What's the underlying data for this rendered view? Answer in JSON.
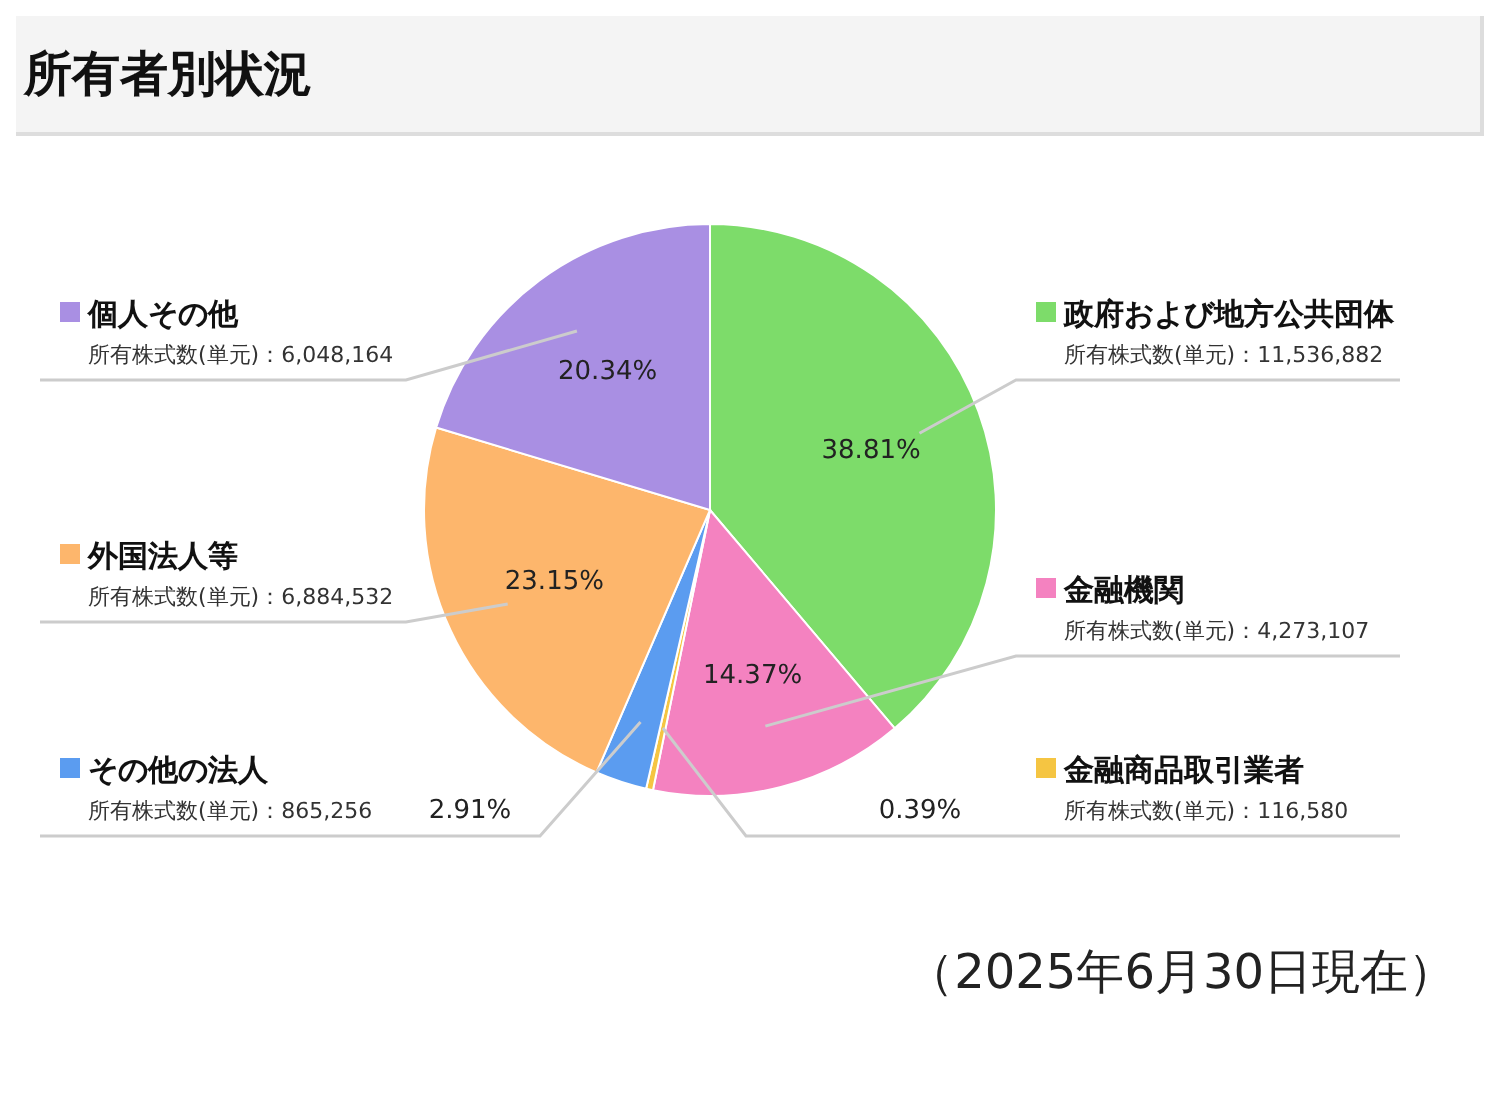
{
  "chart_data": {
    "type": "pie",
    "title": "所有者別状況",
    "categories": [
      "政府および地方公共団体",
      "金融機関",
      "金融商品取引業者",
      "その他の法人",
      "外国法人等",
      "個人その他"
    ],
    "values": [
      38.81,
      14.37,
      0.39,
      2.91,
      23.15,
      20.34
    ],
    "value_labels": [
      "38.81%",
      "14.37%",
      "0.39%",
      "2.91%",
      "23.15%",
      "20.34%"
    ],
    "legend": "right",
    "colors": [
      "#7ddc6a",
      "#f482c0",
      "#f5c542",
      "#5b9cf0",
      "#fdb66c",
      "#a98fe3"
    ],
    "annotations": [
      "所有株式数(単元)：11,536,882",
      "所有株式数(単元)：4,273,107",
      "所有株式数(単元)：116,580",
      "所有株式数(単元)：865,256",
      "所有株式数(単元)：6,884,532",
      "所有株式数(単元)：6,048,164",
      "（2025年6月30日現在）"
    ]
  }
}
